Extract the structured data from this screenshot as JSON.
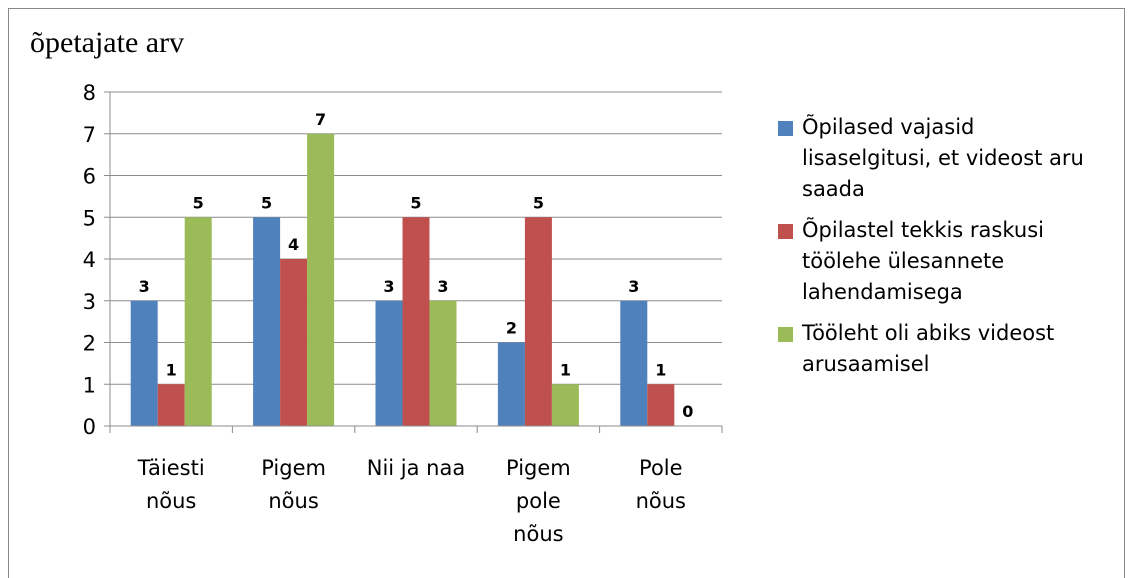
{
  "chart_data": {
    "type": "bar",
    "title": "õpetajate arv",
    "categories": [
      "Täiesti\nnõus",
      "Pigem\nnõus",
      "Nii ja naa",
      "Pigem\npole\nnõus",
      "Pole\nnõus"
    ],
    "series": [
      {
        "name": "Õpilased vajasid lisaselgitusi, et videost aru saada",
        "color": "#4f81bd",
        "values": [
          3,
          5,
          3,
          2,
          3
        ]
      },
      {
        "name": "Õpilastel tekkis raskusi töölehe ülesannete lahendamisega",
        "color": "#c0504d",
        "values": [
          1,
          4,
          5,
          5,
          1
        ]
      },
      {
        "name": "Tööleht oli abiks videost arusaamisel",
        "color": "#9bbb59",
        "values": [
          5,
          7,
          3,
          1,
          0
        ]
      }
    ],
    "ylim": [
      0,
      8
    ],
    "yticks": [
      0,
      1,
      2,
      3,
      4,
      5,
      6,
      7,
      8
    ],
    "grid": true,
    "legend": "right"
  }
}
